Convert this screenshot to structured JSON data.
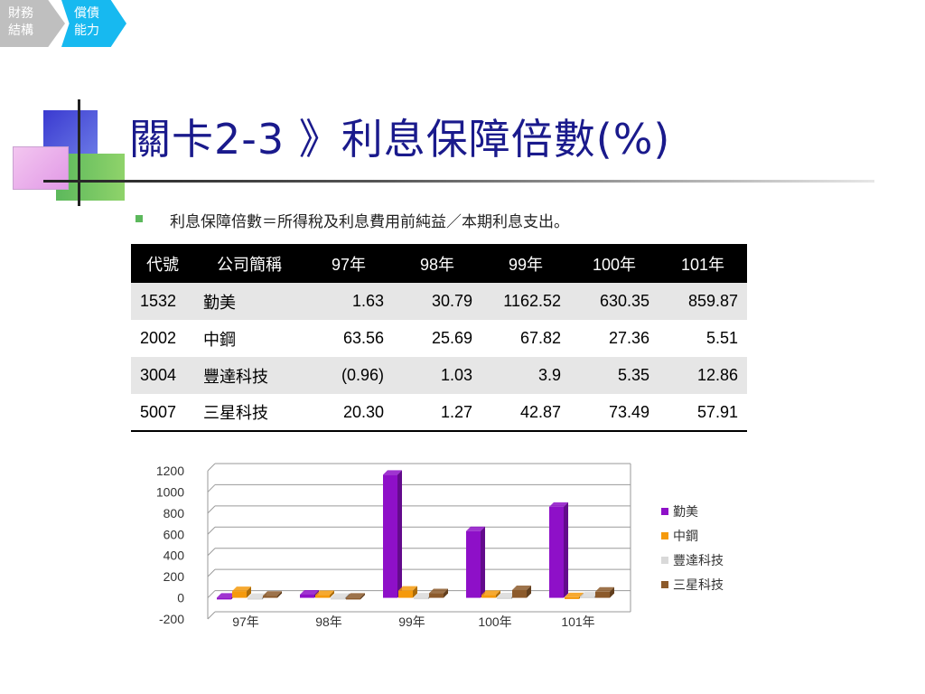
{
  "breadcrumb": [
    {
      "line1": "財務",
      "line2": "結構"
    },
    {
      "line1": "償債",
      "line2": "能力"
    }
  ],
  "title": "關卡2-3 》利息保障倍數(%)",
  "bullet": "利息保障倍數＝所得稅及利息費用前純益／本期利息支出。",
  "table": {
    "headers": [
      "代號",
      "公司簡稱",
      "97年",
      "98年",
      "99年",
      "100年",
      "101年"
    ],
    "rows": [
      [
        "1532",
        "勤美",
        "1.63",
        "30.79",
        "1162.52",
        "630.35",
        "859.87"
      ],
      [
        "2002",
        "中鋼",
        "63.56",
        "25.69",
        "67.82",
        "27.36",
        "5.51"
      ],
      [
        "3004",
        "豐達科技",
        "(0.96)",
        "1.03",
        "3.9",
        "5.35",
        "12.86"
      ],
      [
        "5007",
        "三星科技",
        "20.30",
        "1.27",
        "42.87",
        "73.49",
        "57.91"
      ]
    ]
  },
  "chart_data": {
    "type": "bar",
    "categories": [
      "97年",
      "98年",
      "99年",
      "100年",
      "101年"
    ],
    "series": [
      {
        "name": "勤美",
        "values": [
          1.63,
          30.79,
          1162.52,
          630.35,
          859.87
        ],
        "color": "#8e10c8"
      },
      {
        "name": "中鋼",
        "values": [
          63.56,
          25.69,
          67.82,
          27.36,
          5.51
        ],
        "color": "#f59a0c"
      },
      {
        "name": "豐達科技",
        "values": [
          -0.96,
          1.03,
          3.9,
          5.35,
          12.86
        ],
        "color": "#d9d9d9"
      },
      {
        "name": "三星科技",
        "values": [
          20.3,
          1.27,
          42.87,
          73.49,
          57.91
        ],
        "color": "#8c5a2b"
      }
    ],
    "yticks": [
      "1200",
      "1000",
      "800",
      "600",
      "400",
      "200",
      "0",
      "-200"
    ],
    "ylim": [
      -200,
      1200
    ],
    "grid": true,
    "legend": "right"
  },
  "colors": {
    "title": "#1a1a8c",
    "crumb_active": "#17b9f0",
    "crumb_inactive": "#bfbfbf",
    "bullet": "#5cb85c"
  }
}
